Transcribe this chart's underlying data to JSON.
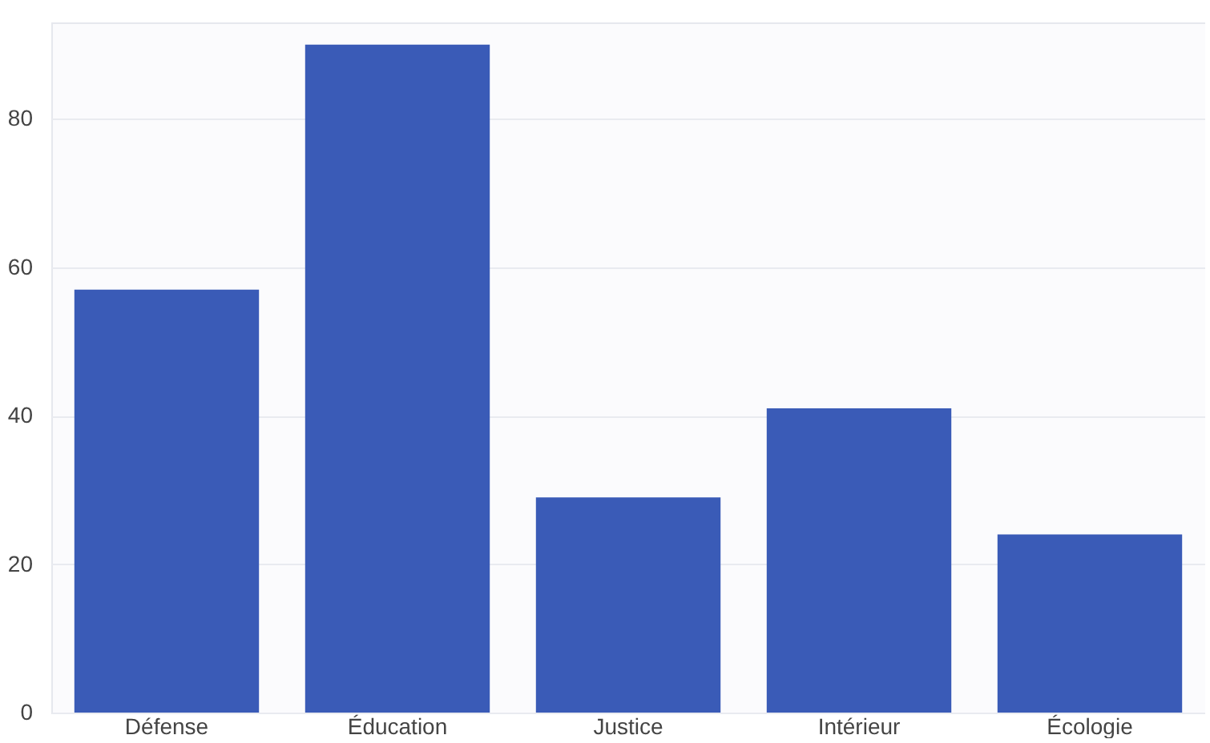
{
  "chart_data": {
    "type": "bar",
    "categories": [
      "Défense",
      "Éducation",
      "Justice",
      "Intérieur",
      "Écologie"
    ],
    "values": [
      57,
      90,
      29,
      41,
      24
    ],
    "color": "#3a5bb7",
    "ylim": [
      0,
      93
    ],
    "yticks": [
      0,
      20,
      40,
      60,
      80
    ],
    "grid": "y"
  }
}
